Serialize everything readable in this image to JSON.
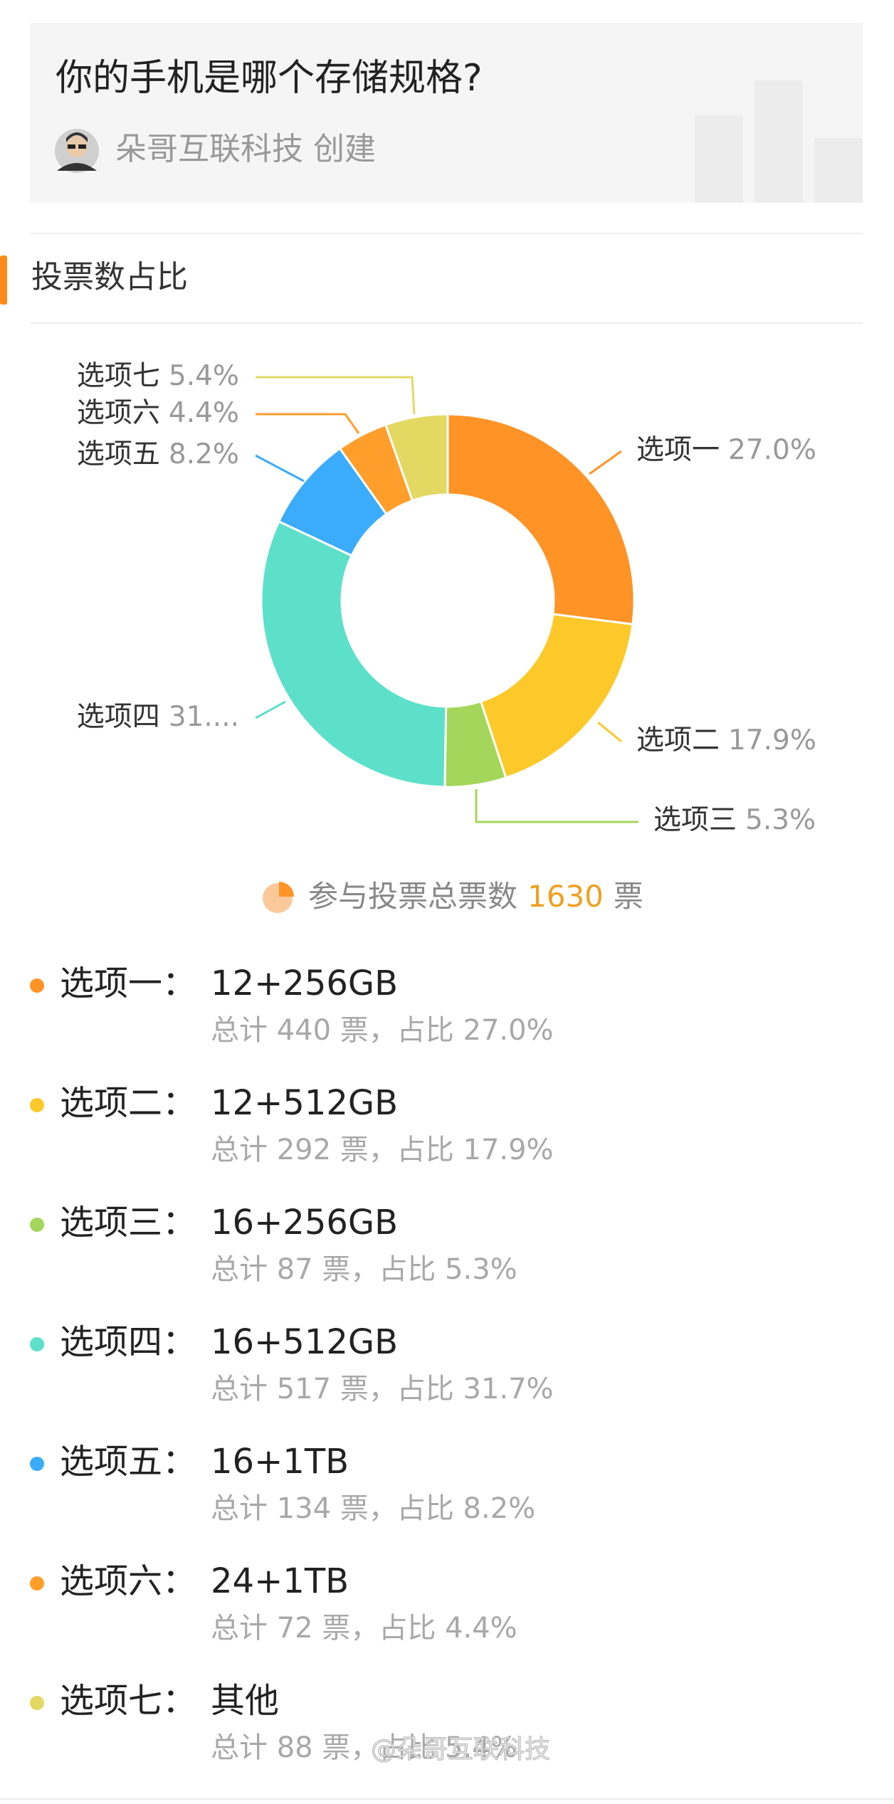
{
  "header": {
    "title": "你的手机是哪个存储规格?",
    "creator": "朵哥互联科技",
    "creator_action": "创建"
  },
  "section_title": "投票数占比",
  "chart_data": {
    "type": "donut",
    "categories": [
      "选项一",
      "选项二",
      "选项三",
      "选项四",
      "选项五",
      "选项六",
      "选项七"
    ],
    "values": [
      27.0,
      17.9,
      5.3,
      31.7,
      8.2,
      4.4,
      5.4
    ],
    "value_labels": [
      "27.0%",
      "17.9%",
      "5.3%",
      "31....",
      "8.2%",
      "4.4%",
      "5.4%"
    ],
    "colors": [
      "#ff9326",
      "#fdc92a",
      "#a3d65a",
      "#5de0c9",
      "#3aacfb",
      "#ff9e2b",
      "#e3d862"
    ]
  },
  "total": {
    "label": "参与投票总票数",
    "count": 1630,
    "unit": "票"
  },
  "options": [
    {
      "name": "选项一：",
      "spec": "12+256GB",
      "detail": "总计 440 票，占比 27.0%"
    },
    {
      "name": "选项二：",
      "spec": "12+512GB",
      "detail": "总计 292 票，占比 17.9%"
    },
    {
      "name": "选项三：",
      "spec": "16+256GB",
      "detail": "总计 87 票，占比 5.3%"
    },
    {
      "name": "选项四：",
      "spec": "16+512GB",
      "detail": "总计 517 票，占比 31.7%"
    },
    {
      "name": "选项五：",
      "spec": "16+1TB",
      "detail": "总计 134 票，占比 8.2%"
    },
    {
      "name": "选项六：",
      "spec": "24+1TB",
      "detail": "总计 72 票，占比 4.4%"
    },
    {
      "name": "选项七：",
      "spec": "其他",
      "detail": "总计 88 票，占比 5.4%"
    }
  ],
  "watermark": "@朵哥互联科技"
}
